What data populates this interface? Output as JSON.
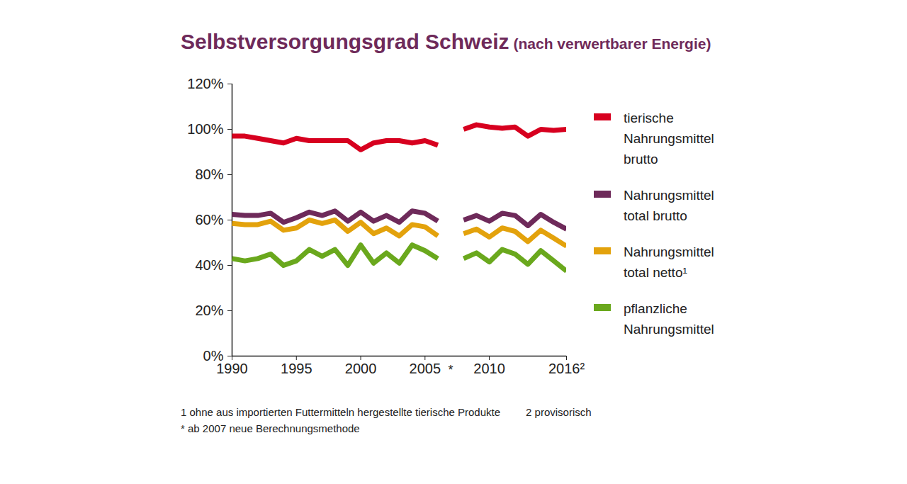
{
  "chart_data": {
    "type": "line",
    "title": "Selbstversorgungsgrad Schweiz",
    "subtitle": "(nach verwertbarer Energie)",
    "x": [
      1990,
      1991,
      1992,
      1993,
      1994,
      1995,
      1996,
      1997,
      1998,
      1999,
      2000,
      2001,
      2002,
      2003,
      2004,
      2005,
      2006,
      2007,
      2008,
      2009,
      2010,
      2011,
      2012,
      2013,
      2014,
      2015,
      2016
    ],
    "series": [
      {
        "name": "tierische Nahrungsmittel brutto",
        "color": "#d7001f",
        "values": [
          97,
          97,
          96,
          95,
          94,
          96,
          95,
          95,
          95,
          95,
          91,
          94,
          95,
          95,
          94,
          95,
          93,
          null,
          100,
          102,
          101,
          100.5,
          101,
          97,
          100,
          99.5,
          100
        ]
      },
      {
        "name": "Nahrungsmittel total brutto",
        "color": "#6e2a5a",
        "values": [
          62.5,
          62,
          62,
          63,
          59,
          61,
          63.5,
          62,
          64,
          59.5,
          63.5,
          59.5,
          62,
          59,
          64,
          63,
          59.5,
          null,
          60,
          62,
          59.5,
          63,
          62,
          57.5,
          62.5,
          59,
          56
        ]
      },
      {
        "name": "Nahrungsmittel total netto¹",
        "color": "#e3a20c",
        "values": [
          58.5,
          58,
          58,
          59.5,
          55.5,
          56.5,
          60,
          58.5,
          60,
          55,
          59,
          54,
          56.5,
          53,
          58,
          57,
          53,
          null,
          54,
          56,
          52.5,
          56.5,
          55,
          50.5,
          55.5,
          52,
          48.5
        ]
      },
      {
        "name": "pflanzliche Nahrungsmittel",
        "color": "#6aa81d",
        "values": [
          43,
          42,
          43,
          45,
          40,
          42,
          47,
          44,
          47,
          40,
          49,
          41,
          45.5,
          41,
          49,
          46.5,
          43,
          null,
          43,
          45.5,
          41.5,
          47,
          45,
          40.5,
          46.5,
          42,
          37.5
        ]
      }
    ],
    "xlim": [
      1990,
      2016
    ],
    "xticks": [
      1990,
      1995,
      2000,
      2005,
      2010,
      {
        "value": 2016,
        "label": "2016²"
      }
    ],
    "ylim": [
      0,
      120
    ],
    "yticks": [
      {
        "value": 0,
        "label": "0%"
      },
      {
        "value": 20,
        "label": "20%"
      },
      {
        "value": 40,
        "label": "40%"
      },
      {
        "value": 60,
        "label": "60%"
      },
      {
        "value": 80,
        "label": "80%"
      },
      {
        "value": 100,
        "label": "100%"
      },
      {
        "value": 120,
        "label": "120%"
      }
    ],
    "grid": false,
    "legend": "right",
    "annotations": [
      {
        "x": 2007,
        "text": "*"
      }
    ],
    "footnotes": [
      "1  ohne aus importierten Futtermitteln hergestellte tierische Produkte",
      "2 provisorisch",
      "*  ab 2007 neue Berechnungsmethode"
    ]
  }
}
